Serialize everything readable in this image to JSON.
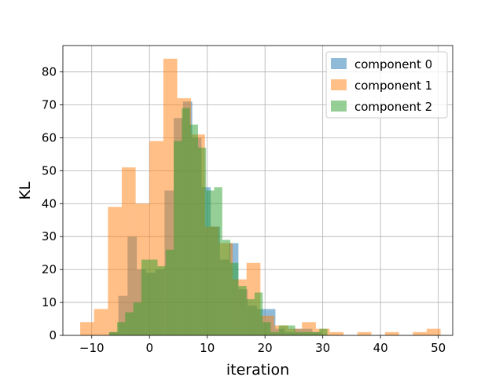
{
  "chart_data": {
    "type": "histogram",
    "title": "",
    "xlabel": "iteration",
    "ylabel": "KL",
    "xlim": [
      -15,
      52.5
    ],
    "ylim": [
      0,
      88
    ],
    "xticks": [
      -10,
      0,
      10,
      20,
      30,
      40,
      50
    ],
    "yticks": [
      0,
      10,
      20,
      30,
      40,
      50,
      60,
      70,
      80
    ],
    "grid": true,
    "legend_position": "top-right",
    "alpha": 0.5,
    "series": [
      {
        "name": "component 0",
        "color": "#1f77b4",
        "bins": [
          [
            -7,
            -5.4,
            1
          ],
          [
            -5.4,
            -3.8,
            12
          ],
          [
            -3.8,
            -2.2,
            30
          ],
          [
            -2.2,
            -0.6,
            20
          ],
          [
            -0.6,
            1,
            19
          ],
          [
            1,
            2.6,
            20
          ],
          [
            2.6,
            4.2,
            44
          ],
          [
            4.2,
            5.8,
            66
          ],
          [
            5.8,
            7.4,
            71
          ],
          [
            7.4,
            9,
            60
          ],
          [
            9,
            10.6,
            45
          ],
          [
            10.6,
            12.2,
            33
          ],
          [
            12.2,
            13.8,
            23
          ],
          [
            13.8,
            15.4,
            28
          ],
          [
            15.4,
            17,
            14
          ],
          [
            17,
            18.6,
            9
          ],
          [
            18.6,
            20.2,
            8
          ],
          [
            20.2,
            21.8,
            8
          ],
          [
            21.8,
            23.4,
            2
          ],
          [
            23.4,
            25,
            1
          ],
          [
            25,
            26.6,
            2
          ],
          [
            26.6,
            28.2,
            2
          ],
          [
            28.2,
            29.8,
            1
          ]
        ]
      },
      {
        "name": "component 1",
        "color": "#ff7f0e",
        "bins": [
          [
            -12,
            -9.6,
            4
          ],
          [
            -9.6,
            -7.2,
            8
          ],
          [
            -7.2,
            -4.8,
            39
          ],
          [
            -4.8,
            -2.4,
            51
          ],
          [
            -2.4,
            0,
            40
          ],
          [
            0,
            2.4,
            59
          ],
          [
            2.4,
            4.8,
            84
          ],
          [
            4.8,
            7.2,
            72
          ],
          [
            7.2,
            9.6,
            61
          ],
          [
            9.6,
            12,
            33
          ],
          [
            12,
            14.4,
            28
          ],
          [
            14.4,
            16.8,
            17
          ],
          [
            16.8,
            19.2,
            22
          ],
          [
            19.2,
            21.6,
            6
          ],
          [
            21.6,
            24,
            3
          ],
          [
            24,
            26.4,
            2
          ],
          [
            26.4,
            28.8,
            4
          ],
          [
            28.8,
            31.2,
            2
          ],
          [
            31.2,
            33.6,
            1
          ],
          [
            33.6,
            36,
            0
          ],
          [
            36,
            38.4,
            1
          ],
          [
            38.4,
            40.8,
            0
          ],
          [
            40.8,
            43.2,
            1
          ],
          [
            43.2,
            45.6,
            0
          ],
          [
            45.6,
            48,
            1
          ],
          [
            48,
            50.4,
            2
          ]
        ]
      },
      {
        "name": "component 2",
        "color": "#2ca02c",
        "bins": [
          [
            -7,
            -5.6,
            1
          ],
          [
            -5.6,
            -4.2,
            4
          ],
          [
            -4.2,
            -2.8,
            7
          ],
          [
            -2.8,
            -1.4,
            10
          ],
          [
            -1.4,
            0,
            23
          ],
          [
            0,
            1.4,
            23
          ],
          [
            1.4,
            2.8,
            21
          ],
          [
            2.8,
            4.2,
            26
          ],
          [
            4.2,
            5.6,
            59
          ],
          [
            5.6,
            7,
            69
          ],
          [
            7,
            8.4,
            64
          ],
          [
            8.4,
            9.8,
            57
          ],
          [
            9.8,
            11.2,
            44
          ],
          [
            11.2,
            12.6,
            45
          ],
          [
            12.6,
            14,
            29
          ],
          [
            14,
            15.4,
            22
          ],
          [
            15.4,
            16.8,
            15
          ],
          [
            16.8,
            18.2,
            11
          ],
          [
            18.2,
            19.6,
            13
          ],
          [
            19.6,
            21,
            4
          ],
          [
            21,
            22.4,
            1
          ],
          [
            22.4,
            23.8,
            3
          ],
          [
            23.8,
            25.2,
            3
          ],
          [
            25.2,
            26.6,
            1
          ],
          [
            26.6,
            28,
            1
          ],
          [
            28,
            29.4,
            1
          ],
          [
            29.4,
            30.8,
            2
          ]
        ]
      }
    ]
  }
}
